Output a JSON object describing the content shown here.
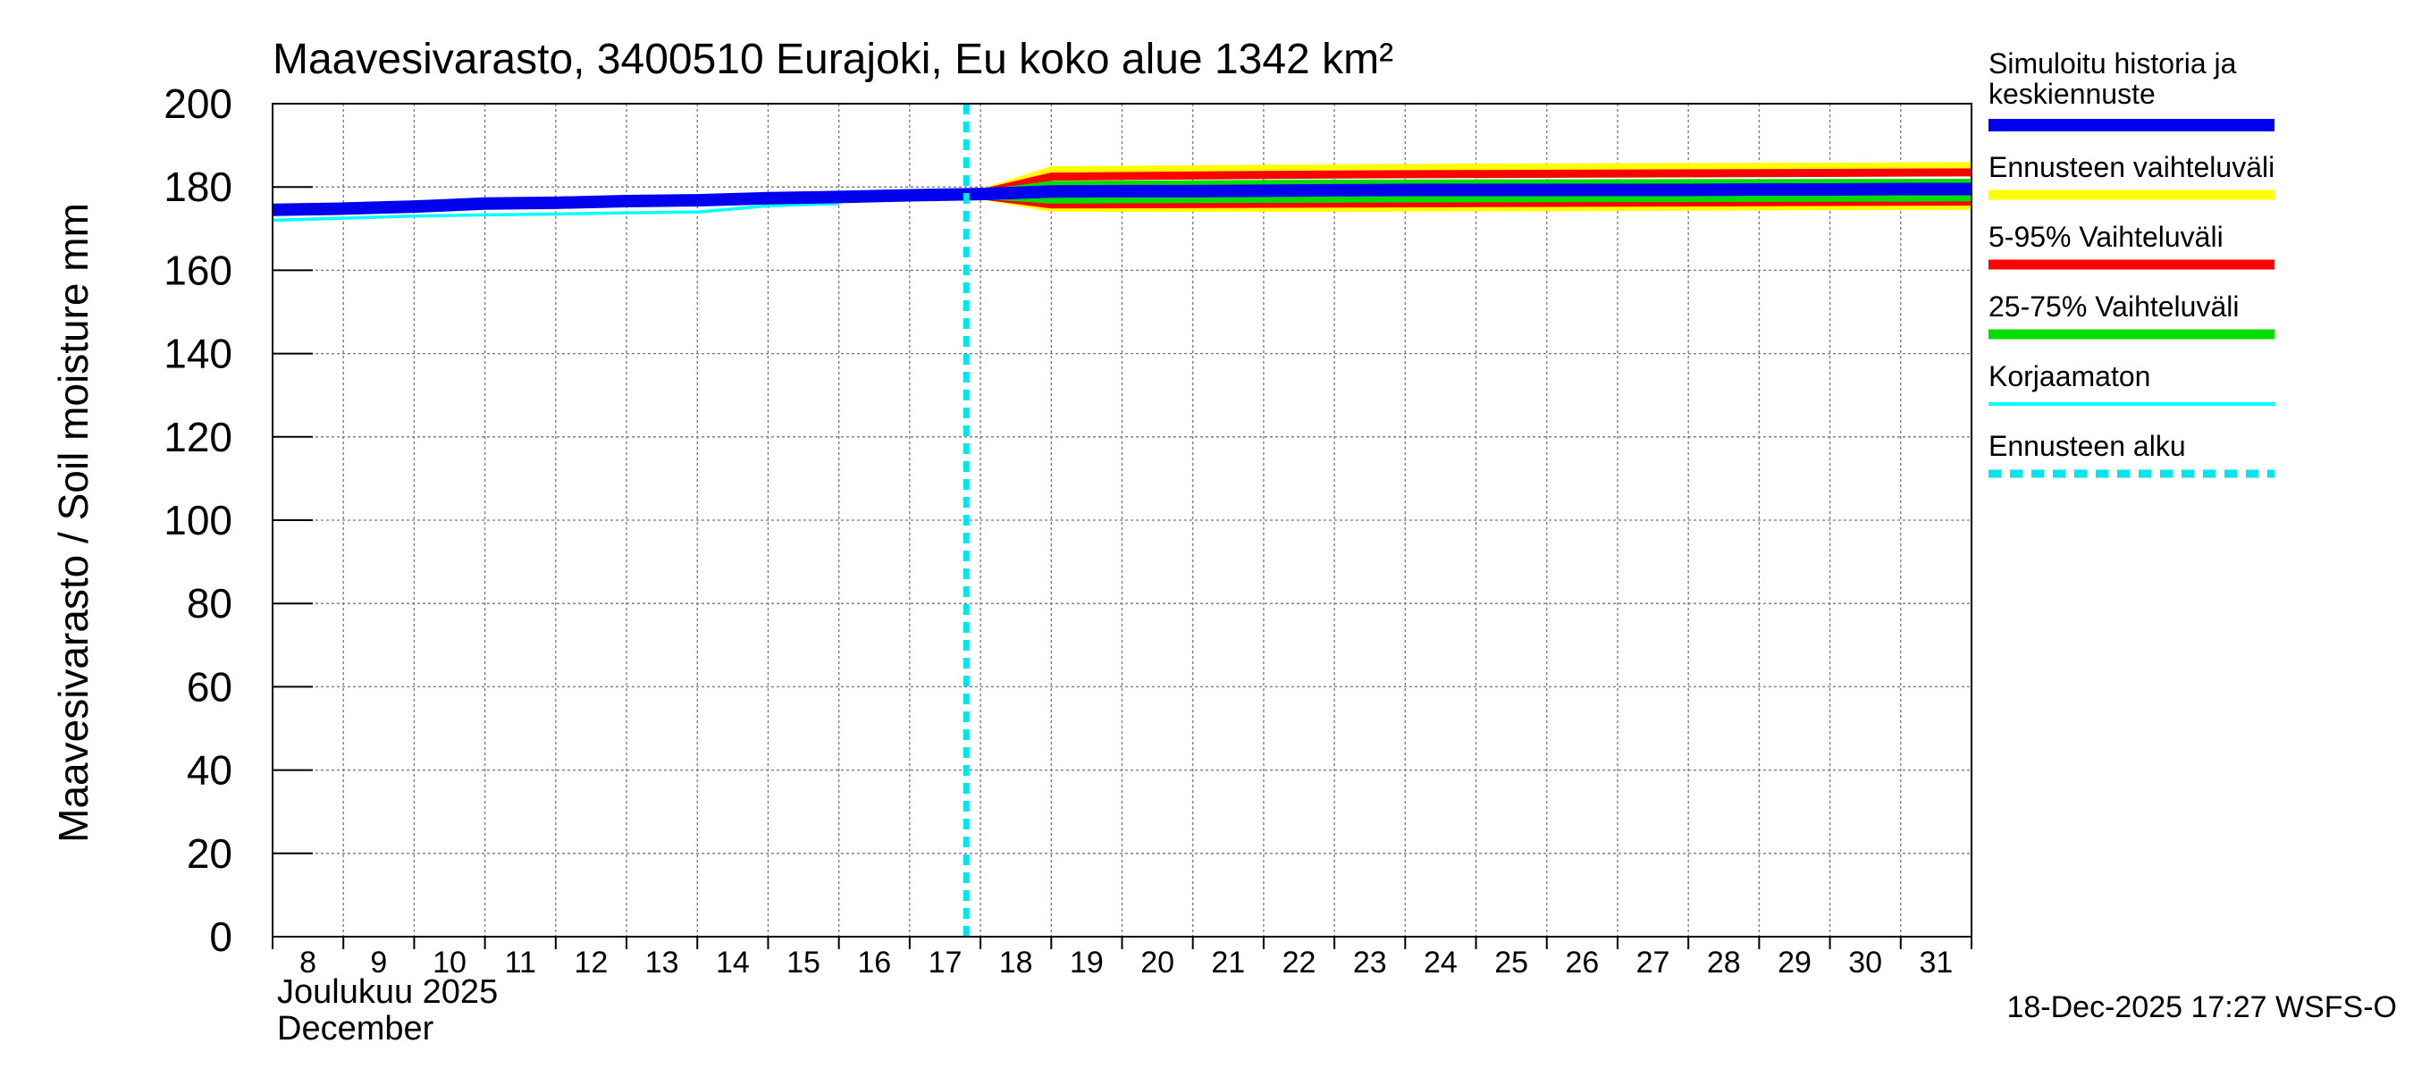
{
  "chart_data": {
    "type": "line",
    "title": "Maavesivarasto, 3400510 Eurajoki, Eu koko alue 1342 km²",
    "ylabel": "Maavesivarasto / Soil moisture   mm",
    "xlabel_fi": "Joulukuu  2025",
    "xlabel_en": "December",
    "ylim": [
      0,
      200
    ],
    "yticks": [
      0,
      20,
      40,
      60,
      80,
      100,
      120,
      140,
      160,
      180,
      200
    ],
    "xlim": [
      8,
      32
    ],
    "xticks": [
      8,
      9,
      10,
      11,
      12,
      13,
      14,
      15,
      16,
      17,
      18,
      19,
      20,
      21,
      22,
      23,
      24,
      25,
      26,
      27,
      28,
      29,
      30,
      31
    ],
    "forecast_start": 17.8,
    "grid": true,
    "series": [
      {
        "name": "Ennusteen vaihteluväli",
        "key": "range_upper",
        "color": "#ffff00",
        "x": [
          18.0,
          19.0,
          23.0,
          32.0
        ],
        "values": [
          178.5,
          184.0,
          184.5,
          185.0
        ]
      },
      {
        "name": "Ennusteen vaihteluväli",
        "key": "range_lower",
        "color": "#ffff00",
        "x": [
          18.0,
          19.0,
          23.0,
          32.0
        ],
        "values": [
          178.0,
          175.0,
          175.0,
          175.5
        ]
      },
      {
        "name": "5-95% Vaihteluväli",
        "key": "p95",
        "color": "#ff0000",
        "x": [
          18.0,
          19.0,
          23.0,
          32.0
        ],
        "values": [
          178.5,
          182.5,
          183.0,
          183.5
        ]
      },
      {
        "name": "5-95% Vaihteluväli",
        "key": "p5",
        "color": "#ff0000",
        "x": [
          18.0,
          19.0,
          23.0,
          32.0
        ],
        "values": [
          178.0,
          175.8,
          176.0,
          176.5
        ]
      },
      {
        "name": "25-75% Vaihteluväli",
        "key": "p75",
        "color": "#00dd00",
        "x": [
          18.0,
          19.0,
          23.0,
          32.0
        ],
        "values": [
          178.3,
          180.5,
          180.8,
          181.0
        ]
      },
      {
        "name": "25-75% Vaihteluväli",
        "key": "p25",
        "color": "#00dd00",
        "x": [
          18.0,
          19.0,
          23.0,
          32.0
        ],
        "values": [
          178.1,
          177.0,
          177.2,
          177.5
        ]
      },
      {
        "name": "Korjaamaton",
        "key": "uncorrected",
        "color": "#00ffff",
        "x": [
          8,
          9,
          10,
          11,
          12,
          13,
          14,
          15,
          16
        ],
        "values": [
          172.0,
          172.5,
          173.0,
          173.3,
          173.5,
          173.8,
          174.0,
          175.5,
          176.0
        ]
      },
      {
        "name": "Simuloitu historia ja keskiennuste",
        "key": "main",
        "color": "#0000ee",
        "x": [
          8,
          9,
          10,
          11,
          12,
          13,
          14,
          15,
          16,
          17,
          18,
          19,
          20,
          21,
          22,
          23,
          24,
          25,
          26,
          27,
          28,
          29,
          30,
          31,
          32
        ],
        "values": [
          174.5,
          174.8,
          175.3,
          176.0,
          176.2,
          176.6,
          176.8,
          177.3,
          177.6,
          178.0,
          178.3,
          178.9,
          179.0,
          179.0,
          179.1,
          179.2,
          179.3,
          179.3,
          179.3,
          179.3,
          179.3,
          179.4,
          179.4,
          179.5,
          179.5
        ]
      }
    ],
    "legend": [
      {
        "label": "Simuloitu historia ja keskiennuste",
        "color": "#0000ee",
        "style": "thick"
      },
      {
        "label": "Ennusteen vaihteluväli",
        "color": "#ffff00",
        "style": "medium"
      },
      {
        "label": "5-95% Vaihteluväli",
        "color": "#ff0000",
        "style": "medium"
      },
      {
        "label": "25-75% Vaihteluväli",
        "color": "#00dd00",
        "style": "medium"
      },
      {
        "label": "Korjaamaton",
        "color": "#00ffff",
        "style": "thin"
      },
      {
        "label": "Ennusteen alku",
        "color": "#00e5ee",
        "style": "dotted"
      }
    ],
    "timestamp": "18-Dec-2025 17:27 WSFS-O"
  }
}
